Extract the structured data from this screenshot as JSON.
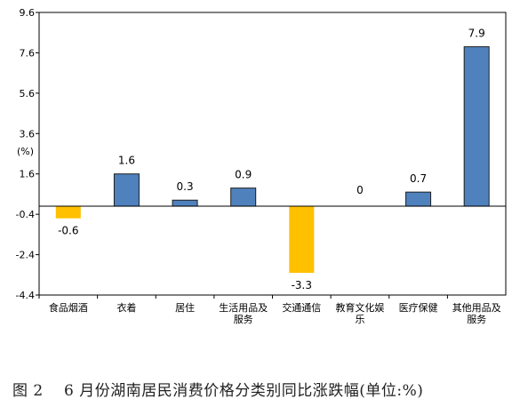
{
  "caption": {
    "figure_no": "图 2",
    "text": "6 月份湖南居民消费价格分类别同比涨跌幅(单位:%)"
  },
  "chart_data": {
    "type": "bar",
    "title": "",
    "xlabel": "",
    "ylabel": "(%)",
    "ylim": [
      -4.4,
      9.6
    ],
    "yticks": [
      "9.6",
      "7.6",
      "5.6",
      "3.6",
      "1.6",
      "-0.4",
      "-2.4",
      "-4.4"
    ],
    "ytick_values": [
      9.6,
      7.6,
      5.6,
      3.6,
      1.6,
      -0.4,
      -2.4,
      -4.4
    ],
    "grid": false,
    "categories": [
      [
        "食品烟酒"
      ],
      [
        "衣着"
      ],
      [
        "居住"
      ],
      [
        "生活用品及",
        "服务"
      ],
      [
        "交通通信"
      ],
      [
        "教育文化娱",
        "乐"
      ],
      [
        "医疗保健"
      ],
      [
        "其他用品及",
        "服务"
      ]
    ],
    "values": [
      -0.6,
      1.6,
      0.3,
      0.9,
      -3.3,
      0,
      0.7,
      7.9
    ],
    "value_labels": [
      "-0.6",
      "1.6",
      "0.3",
      "0.9",
      "-3.3",
      "0",
      "0.7",
      "7.9"
    ],
    "colors": {
      "positive": "#4f81bd",
      "negative": "#ffc000",
      "axis": "#000000"
    }
  }
}
